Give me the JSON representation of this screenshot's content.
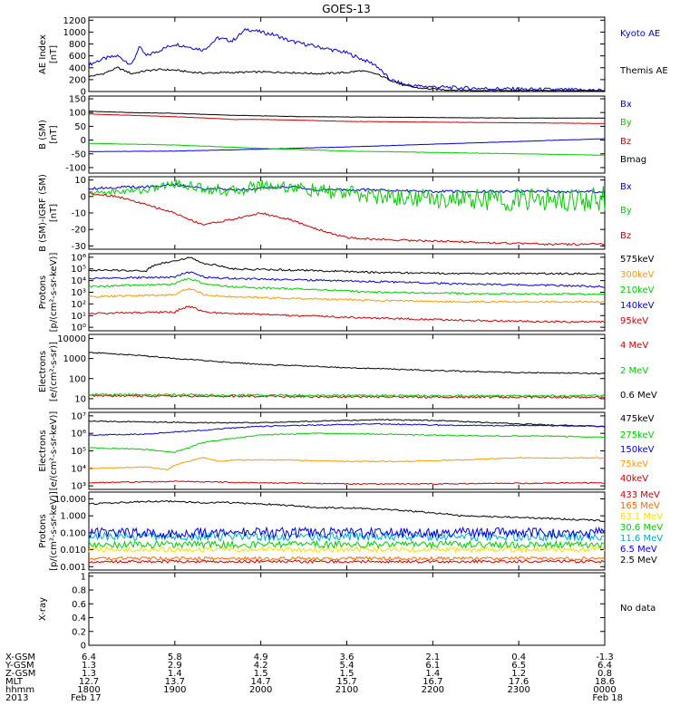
{
  "title": "GOES-13",
  "chart_data": [
    {
      "type": "line",
      "ylabel": "AE Index [nT]",
      "yticks": [
        0,
        200,
        400,
        600,
        800,
        1000,
        1200
      ],
      "ylim": [
        0,
        1250
      ],
      "xlim": [
        0,
        360
      ],
      "series": [
        {
          "name": "Kyoto AE",
          "color": "#0000dd",
          "x": [
            0,
            10,
            20,
            30,
            35,
            40,
            50,
            60,
            70,
            80,
            90,
            100,
            110,
            120,
            130,
            140,
            150,
            160,
            170,
            180,
            190,
            200,
            210,
            220,
            230,
            240,
            250,
            260,
            280,
            300,
            330,
            360
          ],
          "values": [
            450,
            550,
            600,
            450,
            750,
            600,
            700,
            800,
            750,
            700,
            900,
            850,
            1050,
            1000,
            950,
            850,
            800,
            750,
            700,
            650,
            550,
            450,
            200,
            120,
            90,
            80,
            70,
            60,
            50,
            40,
            30,
            20
          ]
        },
        {
          "name": "Themis AE",
          "color": "#000000",
          "x": [
            0,
            10,
            20,
            30,
            40,
            50,
            60,
            70,
            80,
            100,
            120,
            140,
            160,
            180,
            190,
            200,
            210,
            220,
            230,
            240,
            250,
            260,
            280,
            300,
            330,
            360
          ],
          "values": [
            250,
            300,
            400,
            300,
            350,
            370,
            360,
            330,
            310,
            320,
            330,
            320,
            300,
            320,
            350,
            300,
            200,
            100,
            60,
            40,
            30,
            20,
            15,
            10,
            8,
            5
          ]
        }
      ]
    },
    {
      "type": "line",
      "ylabel": "B (SM) [nT]",
      "yticks": [
        -100,
        -50,
        0,
        50,
        100,
        150
      ],
      "ylim": [
        -120,
        160
      ],
      "xlim": [
        0,
        360
      ],
      "series": [
        {
          "name": "Bx",
          "color": "#0000dd",
          "x": [
            0,
            60,
            120,
            180,
            240,
            300,
            360
          ],
          "values": [
            -42,
            -40,
            -33,
            -25,
            -15,
            -5,
            5
          ]
        },
        {
          "name": "By",
          "color": "#00cc00",
          "x": [
            0,
            60,
            120,
            180,
            240,
            300,
            360
          ],
          "values": [
            -12,
            -18,
            -30,
            -40,
            -45,
            -50,
            -55
          ]
        },
        {
          "name": "Bz",
          "color": "#cc0000",
          "x": [
            0,
            30,
            60,
            90,
            100,
            120,
            150,
            180,
            240,
            300,
            360
          ],
          "values": [
            95,
            90,
            85,
            78,
            75,
            75,
            72,
            68,
            65,
            63,
            60
          ]
        },
        {
          "name": "Bmag",
          "color": "#000000",
          "x": [
            0,
            30,
            60,
            90,
            100,
            120,
            150,
            180,
            240,
            300,
            360
          ],
          "values": [
            105,
            100,
            97,
            92,
            90,
            88,
            85,
            84,
            82,
            80,
            80
          ]
        }
      ]
    },
    {
      "type": "line",
      "ylabel": "B (SM)-IGRF (SM) [nT]",
      "yticks": [
        -30,
        -20,
        -10,
        0,
        10
      ],
      "ylim": [
        -32,
        12
      ],
      "xlim": [
        0,
        360
      ],
      "series": [
        {
          "name": "Bx",
          "color": "#0000dd",
          "x": [
            0,
            40,
            60,
            80,
            100,
            120,
            140,
            160,
            200,
            240,
            280,
            320,
            360
          ],
          "values": [
            5,
            6,
            7,
            5,
            4,
            5,
            6,
            4,
            4,
            3,
            3,
            3,
            3
          ]
        },
        {
          "name": "By",
          "color": "#00cc00",
          "x": [
            0,
            40,
            60,
            80,
            100,
            120,
            140,
            160,
            180,
            200,
            240,
            280,
            320,
            360
          ],
          "values": [
            2,
            4,
            8,
            5,
            3,
            7,
            6,
            3,
            2,
            0,
            -1,
            -2,
            -2,
            -1
          ]
        },
        {
          "name": "Bz",
          "color": "#cc0000",
          "x": [
            0,
            20,
            40,
            60,
            70,
            80,
            100,
            120,
            140,
            160,
            180,
            200,
            240,
            280,
            320,
            360
          ],
          "values": [
            2,
            0,
            -5,
            -10,
            -14,
            -17,
            -14,
            -10,
            -14,
            -20,
            -25,
            -26,
            -27,
            -28,
            -29,
            -29
          ]
        }
      ]
    },
    {
      "type": "line",
      "ylabel": "Protons [p/(cm²-s-sr-keV)]",
      "yscale": "log",
      "ytick_labels": [
        "10⁰",
        "10¹",
        "10²",
        "10³",
        "10⁴",
        "10⁵",
        "10⁶"
      ],
      "ylim_log10": [
        -0.3,
        6.3
      ],
      "xlim": [
        0,
        360
      ],
      "series": [
        {
          "name": "575keV",
          "color": "#000000",
          "x": [
            0,
            40,
            60,
            70,
            80,
            100,
            140,
            200,
            260,
            320,
            360
          ],
          "values": [
            80000,
            70000,
            500000,
            900000,
            300000,
            100000,
            80000,
            50000,
            40000,
            40000,
            40000
          ]
        },
        {
          "name": "300keV",
          "color": "#ff9900",
          "x": [
            0,
            60,
            70,
            80,
            100,
            140,
            200,
            260,
            320,
            360
          ],
          "values": [
            400,
            600,
            2000,
            600,
            400,
            300,
            200,
            150,
            150,
            150
          ]
        },
        {
          "name": "210keV",
          "color": "#00cc00",
          "x": [
            0,
            60,
            70,
            80,
            100,
            140,
            200,
            260,
            320,
            360
          ],
          "values": [
            3000,
            5000,
            15000,
            5000,
            3000,
            2000,
            1000,
            800,
            700,
            700
          ]
        },
        {
          "name": "140keV",
          "color": "#0000dd",
          "x": [
            0,
            60,
            70,
            80,
            100,
            140,
            200,
            260,
            320,
            360
          ],
          "values": [
            15000,
            20000,
            50000,
            20000,
            15000,
            12000,
            8000,
            5000,
            4000,
            3000
          ]
        },
        {
          "name": "95keV",
          "color": "#cc0000",
          "x": [
            0,
            60,
            70,
            80,
            100,
            140,
            200,
            260,
            320,
            360
          ],
          "values": [
            15,
            20,
            60,
            20,
            15,
            10,
            6,
            4,
            3,
            3
          ]
        }
      ]
    },
    {
      "type": "line",
      "ylabel": "Electrons [e/(cm²-s-sr)]",
      "yscale": "log",
      "ytick_labels": [
        "10",
        "100",
        "1000",
        "10000"
      ],
      "ylim_log10": [
        0.5,
        4.2
      ],
      "xlim": [
        0,
        360
      ],
      "series": [
        {
          "name": "4 MeV",
          "color": "#cc0000",
          "x": [
            0,
            120,
            240,
            360
          ],
          "values": [
            14,
            13,
            12,
            12
          ]
        },
        {
          "name": "2 MeV",
          "color": "#00cc00",
          "x": [
            0,
            120,
            240,
            360
          ],
          "values": [
            16,
            15,
            14,
            14
          ]
        },
        {
          "name": "0.6 MeV",
          "color": "#000000",
          "x": [
            0,
            30,
            60,
            90,
            120,
            180,
            240,
            300,
            360
          ],
          "values": [
            2000,
            1500,
            1000,
            700,
            500,
            350,
            250,
            200,
            180
          ]
        }
      ]
    },
    {
      "type": "line",
      "ylabel": "Electrons [e/(cm²-s-sr-keV)]",
      "yscale": "log",
      "ytick_labels": [
        "10³",
        "10⁴",
        "10⁵",
        "10⁶",
        "10⁷"
      ],
      "ylim_log10": [
        2.8,
        7.2
      ],
      "xlim": [
        0,
        360
      ],
      "series": [
        {
          "name": "475keV",
          "color": "#000000",
          "x": [
            0,
            40,
            80,
            120,
            160,
            200,
            240,
            280,
            320,
            360
          ],
          "values": [
            5000000,
            4500000,
            4000000,
            4000000,
            5000000,
            6000000,
            5500000,
            4000000,
            3000000,
            2500000
          ]
        },
        {
          "name": "275keV",
          "color": "#00cc00",
          "x": [
            0,
            40,
            60,
            70,
            80,
            100,
            120,
            160,
            200,
            240,
            280,
            320,
            360
          ],
          "values": [
            150000,
            120000,
            80000,
            150000,
            300000,
            500000,
            800000,
            1000000,
            900000,
            800000,
            700000,
            700000,
            600000
          ]
        },
        {
          "name": "150keV",
          "color": "#0000dd",
          "x": [
            0,
            40,
            80,
            120,
            160,
            200,
            240,
            280,
            320,
            360
          ],
          "values": [
            800000,
            900000,
            1500000,
            2500000,
            3000000,
            3500000,
            3000000,
            2800000,
            2800000,
            2500000
          ]
        },
        {
          "name": "75keV",
          "color": "#ff9900",
          "x": [
            0,
            40,
            55,
            60,
            70,
            80,
            90,
            100,
            140,
            180,
            220,
            260,
            300,
            360
          ],
          "values": [
            10000,
            12000,
            8000,
            15000,
            25000,
            40000,
            25000,
            30000,
            30000,
            25000,
            25000,
            30000,
            40000,
            40000
          ]
        },
        {
          "name": "40keV",
          "color": "#cc0000",
          "x": [
            0,
            60,
            120,
            180,
            240,
            300,
            360
          ],
          "values": [
            1500,
            1800,
            1500,
            1300,
            1300,
            1400,
            1500
          ]
        }
      ]
    },
    {
      "type": "line",
      "ylabel": "Protons [p/(cm²-s-sr-keV)]",
      "yscale": "log",
      "ytick_labels": [
        "0.001",
        "0.010",
        "0.100",
        "1.000",
        "10.000"
      ],
      "ylim_log10": [
        -3.2,
        1.4
      ],
      "xlim": [
        0,
        360
      ],
      "series": [
        {
          "name": "433 MeV",
          "color": "#cc0000",
          "x": [
            0,
            120,
            240,
            360
          ],
          "values": [
            0.002,
            0.002,
            0.002,
            0.002
          ]
        },
        {
          "name": "165 MeV",
          "color": "#ff6600",
          "x": [
            0,
            120,
            240,
            360
          ],
          "values": [
            0.003,
            0.003,
            0.003,
            0.003
          ]
        },
        {
          "name": "63.1 MeV",
          "color": "#ffdd00",
          "x": [
            0,
            120,
            240,
            360
          ],
          "values": [
            0.01,
            0.01,
            0.01,
            0.01
          ]
        },
        {
          "name": "30.6 MeV",
          "color": "#00cc00",
          "x": [
            0,
            120,
            240,
            360
          ],
          "values": [
            0.02,
            0.02,
            0.02,
            0.02
          ]
        },
        {
          "name": "11.6 MeV",
          "color": "#00aacc",
          "x": [
            0,
            120,
            240,
            360
          ],
          "values": [
            0.06,
            0.06,
            0.06,
            0.06
          ]
        },
        {
          "name": "6.5 MeV",
          "color": "#0000dd",
          "x": [
            0,
            120,
            240,
            360
          ],
          "values": [
            0.1,
            0.1,
            0.1,
            0.1
          ]
        },
        {
          "name": "2.5 MeV",
          "color": "#000000",
          "x": [
            0,
            20,
            40,
            60,
            80,
            100,
            120,
            140,
            160,
            180,
            200,
            220,
            240,
            260,
            280,
            300,
            320,
            340,
            360
          ],
          "values": [
            5,
            6,
            7,
            7,
            6,
            6,
            5,
            4,
            3,
            3,
            2.5,
            2,
            1.5,
            1,
            0.9,
            0.8,
            0.7,
            0.6,
            0.5
          ]
        }
      ]
    },
    {
      "type": "line",
      "ylabel": "X-ray",
      "yticks": [
        0.0,
        0.2,
        0.4,
        0.6,
        0.8,
        1.0
      ],
      "ylim": [
        0,
        1.05
      ],
      "xlim": [
        0,
        360
      ],
      "note": "No data",
      "series": []
    }
  ],
  "ephemeris": {
    "row_labels": [
      "X-GSM",
      "Y-GSM",
      "Z-GSM",
      "MLT",
      "hhmm",
      "2013"
    ],
    "columns": [
      [
        "6.4",
        "1.3",
        "1.3",
        "12.7",
        "1800",
        "Feb 17"
      ],
      [
        "5.8",
        "2.9",
        "1.4",
        "13.7",
        "1900",
        ""
      ],
      [
        "4.9",
        "4.2",
        "1.5",
        "14.7",
        "2000",
        ""
      ],
      [
        "3.6",
        "5.4",
        "1.5",
        "15.7",
        "2100",
        ""
      ],
      [
        "2.1",
        "6.1",
        "1.4",
        "16.7",
        "2200",
        ""
      ],
      [
        "0.4",
        "6.5",
        "1.2",
        "17.6",
        "2300",
        ""
      ],
      [
        "-1.3",
        "6.4",
        "0.8",
        "18.6",
        "0000",
        "Feb 18"
      ]
    ]
  }
}
